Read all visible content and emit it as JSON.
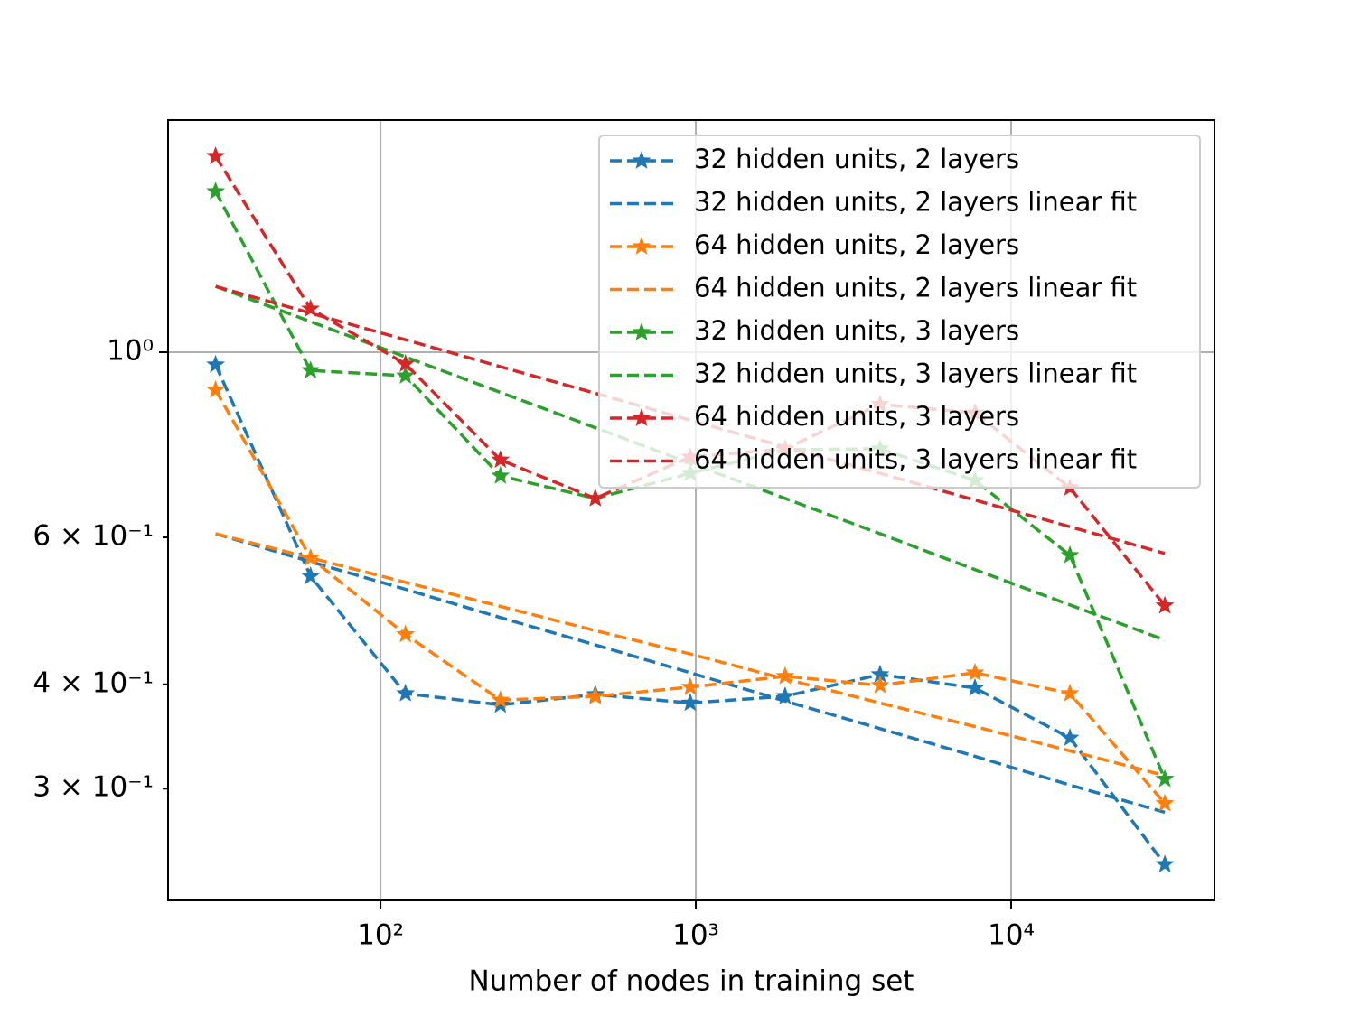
{
  "chart_data": {
    "type": "line",
    "xlabel": "Number of nodes in training set",
    "x": [
      30,
      60,
      120,
      240,
      480,
      960,
      1920,
      3840,
      7680,
      15360,
      30720
    ],
    "xscale": "log",
    "yscale": "log",
    "xlim": [
      21.2,
      44130
    ],
    "ylim": [
      0.2204,
      1.897
    ],
    "xticks": [
      {
        "value": 100,
        "label": "10²"
      },
      {
        "value": 1000,
        "label": "10³"
      },
      {
        "value": 10000,
        "label": "10⁴"
      }
    ],
    "yticks": [
      {
        "value": 0.3,
        "label": "3 × 10⁻¹"
      },
      {
        "value": 0.4,
        "label": "4 × 10⁻¹"
      },
      {
        "value": 0.6,
        "label": "6 × 10⁻¹"
      },
      {
        "value": 1,
        "label": "10⁰"
      }
    ],
    "grid": true,
    "legend": "upper right",
    "series": [
      {
        "name": "32 hidden units, 2 layers",
        "color": "#1f77b4",
        "marker": "*",
        "values": [
          0.966,
          0.539,
          0.39,
          0.378,
          0.389,
          0.38,
          0.387,
          0.411,
          0.396,
          0.345,
          0.2434
        ]
      },
      {
        "name": "32 hidden units, 2 layers linear fit",
        "color": "#1f77b4",
        "values": [
          0.606,
          0.561,
          0.52,
          0.481,
          0.446,
          0.413,
          0.382,
          0.354,
          0.328,
          0.303,
          0.281
        ]
      },
      {
        "name": "64 hidden units, 2 layers",
        "color": "#ff7f0e",
        "marker": "*",
        "values": [
          0.901,
          0.567,
          0.459,
          0.383,
          0.387,
          0.397,
          0.409,
          0.399,
          0.413,
          0.39,
          0.288
        ]
      },
      {
        "name": "64 hidden units, 2 layers linear fit",
        "color": "#ff7f0e",
        "values": [
          0.606,
          0.567,
          0.53,
          0.496,
          0.464,
          0.435,
          0.406,
          0.38,
          0.356,
          0.333,
          0.311
        ]
      },
      {
        "name": "32 hidden units, 3 layers",
        "color": "#2ca02c",
        "marker": "*",
        "values": [
          1.558,
          0.951,
          0.937,
          0.711,
          0.668,
          0.716,
          0.764,
          0.766,
          0.702,
          0.571,
          0.308
        ]
      },
      {
        "name": "32 hidden units, 3 layers linear fit",
        "color": "#2ca02c",
        "values": [
          1.199,
          1.088,
          0.987,
          0.895,
          0.812,
          0.736,
          0.668,
          0.606,
          0.549,
          0.498,
          0.452
        ]
      },
      {
        "name": "64 hidden units, 3 layers",
        "color": "#d62728",
        "marker": "*",
        "values": [
          1.717,
          1.127,
          0.968,
          0.743,
          0.668,
          0.749,
          0.766,
          0.866,
          0.846,
          0.688,
          0.497
        ]
      },
      {
        "name": "64 hidden units, 3 layers linear fit",
        "color": "#d62728",
        "values": [
          1.199,
          1.114,
          1.035,
          0.961,
          0.893,
          0.829,
          0.77,
          0.716,
          0.665,
          0.618,
          0.574
        ]
      }
    ]
  }
}
